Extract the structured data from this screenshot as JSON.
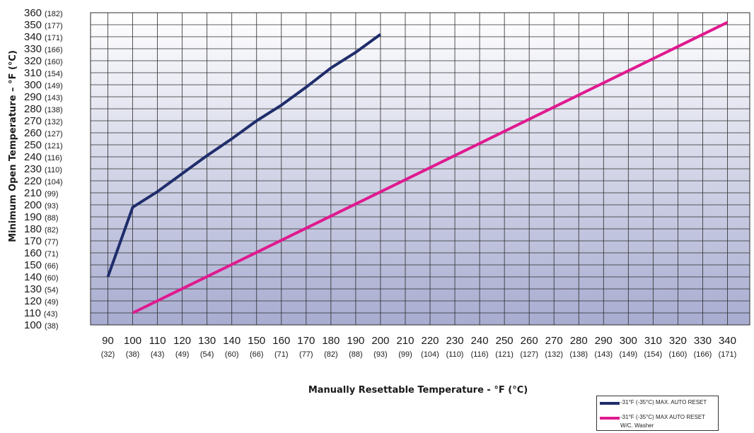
{
  "colors": {
    "series1": "#1f2d6b",
    "series2": "#e0198f",
    "grid": "#2b2b2b",
    "bg_top": "#ffffff",
    "bg_bottom": "#a8acd0"
  },
  "chart_data": {
    "type": "line",
    "xlabel": "Manually Resettable Temperature - °F (°C)",
    "ylabel": "Minimum Open Temperature – °F (°C)",
    "xlim": [
      83,
      349
    ],
    "ylim": [
      100,
      360
    ],
    "x_ticks": [
      {
        "value": 90,
        "f": "90",
        "c": "(32)"
      },
      {
        "value": 100,
        "f": "100",
        "c": "(38)"
      },
      {
        "value": 110,
        "f": "110",
        "c": "(43)"
      },
      {
        "value": 120,
        "f": "120",
        "c": "(49)"
      },
      {
        "value": 130,
        "f": "130",
        "c": "(54)"
      },
      {
        "value": 140,
        "f": "140",
        "c": "(60)"
      },
      {
        "value": 150,
        "f": "150",
        "c": "(66)"
      },
      {
        "value": 160,
        "f": "160",
        "c": "(71)"
      },
      {
        "value": 170,
        "f": "170",
        "c": "(77)"
      },
      {
        "value": 180,
        "f": "180",
        "c": "(82)"
      },
      {
        "value": 190,
        "f": "190",
        "c": "(88)"
      },
      {
        "value": 200,
        "f": "200",
        "c": "(93)"
      },
      {
        "value": 210,
        "f": "210",
        "c": "(99)"
      },
      {
        "value": 220,
        "f": "220",
        "c": "(104)"
      },
      {
        "value": 230,
        "f": "230",
        "c": "(110)"
      },
      {
        "value": 240,
        "f": "240",
        "c": "(116)"
      },
      {
        "value": 250,
        "f": "250",
        "c": "(121)"
      },
      {
        "value": 260,
        "f": "260",
        "c": "(127)"
      },
      {
        "value": 270,
        "f": "270",
        "c": "(132)"
      },
      {
        "value": 280,
        "f": "280",
        "c": "(138)"
      },
      {
        "value": 290,
        "f": "290",
        "c": "(143)"
      },
      {
        "value": 300,
        "f": "300",
        "c": "(149)"
      },
      {
        "value": 310,
        "f": "310",
        "c": "(154)"
      },
      {
        "value": 320,
        "f": "320",
        "c": "(160)"
      },
      {
        "value": 330,
        "f": "330",
        "c": "(166)"
      },
      {
        "value": 340,
        "f": "340",
        "c": "(171)"
      }
    ],
    "y_ticks": [
      {
        "value": 100,
        "f": "100",
        "c": "(38)"
      },
      {
        "value": 110,
        "f": "110",
        "c": "(43)"
      },
      {
        "value": 120,
        "f": "120",
        "c": "(49)"
      },
      {
        "value": 130,
        "f": "130",
        "c": "(54)"
      },
      {
        "value": 140,
        "f": "140",
        "c": "(60)"
      },
      {
        "value": 150,
        "f": "150",
        "c": "(66)"
      },
      {
        "value": 160,
        "f": "160",
        "c": "(71)"
      },
      {
        "value": 170,
        "f": "170",
        "c": "(77)"
      },
      {
        "value": 180,
        "f": "180",
        "c": "(82)"
      },
      {
        "value": 190,
        "f": "190",
        "c": "(88)"
      },
      {
        "value": 200,
        "f": "200",
        "c": "(93)"
      },
      {
        "value": 210,
        "f": "210",
        "c": "(99)"
      },
      {
        "value": 220,
        "f": "220",
        "c": "(104)"
      },
      {
        "value": 230,
        "f": "230",
        "c": "(110)"
      },
      {
        "value": 240,
        "f": "240",
        "c": "(116)"
      },
      {
        "value": 250,
        "f": "250",
        "c": "(121)"
      },
      {
        "value": 260,
        "f": "260",
        "c": "(127)"
      },
      {
        "value": 270,
        "f": "270",
        "c": "(132)"
      },
      {
        "value": 280,
        "f": "280",
        "c": "(138)"
      },
      {
        "value": 290,
        "f": "290",
        "c": "(143)"
      },
      {
        "value": 300,
        "f": "300",
        "c": "(149)"
      },
      {
        "value": 310,
        "f": "310",
        "c": "(154)"
      },
      {
        "value": 320,
        "f": "320",
        "c": "(160)"
      },
      {
        "value": 330,
        "f": "330",
        "c": "(166)"
      },
      {
        "value": 340,
        "f": "340",
        "c": "(171)"
      },
      {
        "value": 350,
        "f": "350",
        "c": "(177)"
      },
      {
        "value": 360,
        "f": "360",
        "c": "(182)"
      }
    ],
    "grid": true,
    "legend_position": "bottom-right",
    "series": [
      {
        "name": "-31°F (-35°C) MAX. AUTO RESET",
        "points": [
          [
            90,
            140
          ],
          [
            100,
            198
          ],
          [
            110,
            211
          ],
          [
            120,
            226
          ],
          [
            130,
            241
          ],
          [
            140,
            255
          ],
          [
            150,
            270
          ],
          [
            160,
            283
          ],
          [
            170,
            298
          ],
          [
            180,
            314
          ],
          [
            190,
            327
          ],
          [
            200,
            342
          ]
        ]
      },
      {
        "name": "-31°F (-35°C) MAX AUTO RESET W/C. Washer",
        "points": [
          [
            100,
            110
          ],
          [
            340,
            352
          ]
        ]
      }
    ]
  }
}
